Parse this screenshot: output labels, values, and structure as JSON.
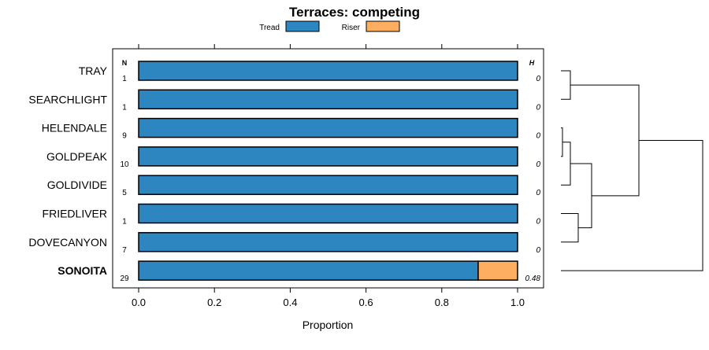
{
  "chart_data": {
    "type": "bar",
    "stacked": true,
    "orientation": "horizontal",
    "title": "Terraces: competing",
    "xlabel": "Proportion",
    "ylabel": "",
    "xlim": [
      -0.07,
      1.07
    ],
    "xticks": [
      "0.0",
      "0.2",
      "0.4",
      "0.6",
      "0.8",
      "1.0"
    ],
    "xtick_values": [
      0,
      0.2,
      0.4,
      0.6,
      0.8,
      1.0
    ],
    "legend": {
      "placement": "top",
      "entries": [
        "Tread",
        "Riser"
      ]
    },
    "n_header": "N",
    "h_header": "H",
    "categories": [
      "TRAY",
      "SEARCHLIGHT",
      "HELENDALE",
      "GOLDPEAK",
      "GOLDIVIDE",
      "FRIEDLIVER",
      "DOVECANYON",
      "SONOITA"
    ],
    "bold_categories": [
      "SONOITA"
    ],
    "n": [
      "1",
      "1",
      "9",
      "10",
      "5",
      "1",
      "7",
      "29"
    ],
    "h": [
      "0",
      "0",
      "0",
      "0",
      "0",
      "0",
      "0",
      "0.48"
    ],
    "series": [
      {
        "name": "Tread",
        "color": "#2e86c1",
        "values": [
          1,
          1,
          1,
          1,
          1,
          1,
          1,
          0.896
        ]
      },
      {
        "name": "Riser",
        "color": "#fdae61",
        "values": [
          0,
          0,
          0,
          0,
          0,
          0,
          0,
          0.104
        ]
      }
    ],
    "dendrogram": "((TRAY,SEARCHLIGHT),(((HELENDALE,GOLDPEAK),GOLDIVIDE),(FRIEDLIVER,DOVECANYON))),SONOITA"
  }
}
